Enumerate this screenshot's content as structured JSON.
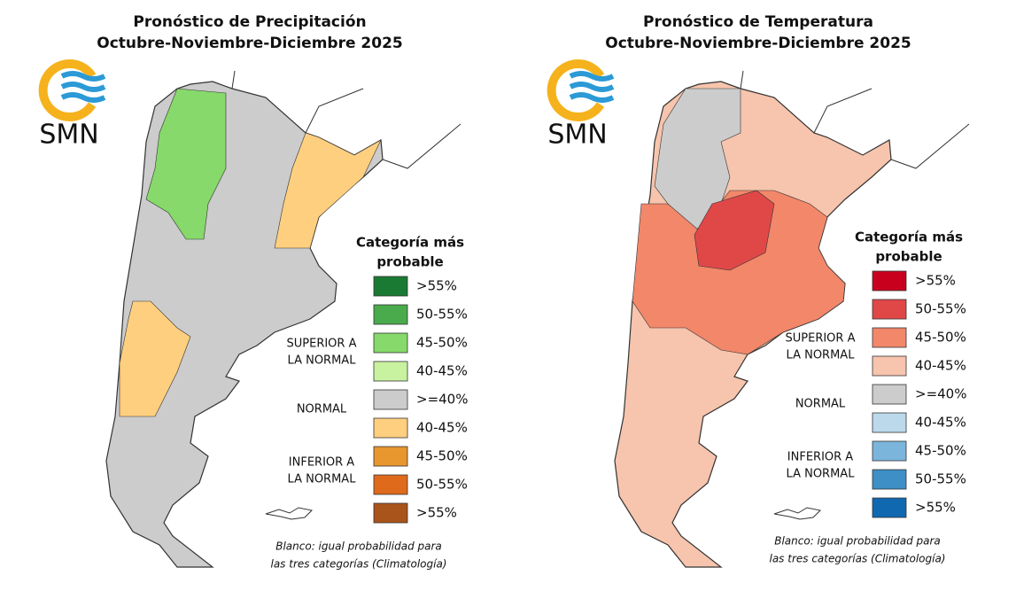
{
  "panels": [
    {
      "title": [
        "Pronóstico de Precipitación",
        "Octubre-Noviembre-Diciembre 2025"
      ],
      "logo": "SMN",
      "legend": {
        "title": [
          "Categoría más",
          "probable"
        ],
        "groups": [
          [
            "SUPERIOR A",
            "LA NORMAL"
          ],
          [
            "NORMAL"
          ],
          [
            "INFERIOR A",
            "LA NORMAL"
          ]
        ],
        "items": [
          {
            "label": ">55%",
            "color": "#1a7a33"
          },
          {
            "label": "50-55%",
            "color": "#4aab4c"
          },
          {
            "label": "45-50%",
            "color": "#86d96a"
          },
          {
            "label": "40-45%",
            "color": "#c9f2a0"
          },
          {
            "label": ">=40%",
            "color": "#cccccc"
          },
          {
            "label": "40-45%",
            "color": "#ffcf80"
          },
          {
            "label": "45-50%",
            "color": "#e8962e"
          },
          {
            "label": "50-55%",
            "color": "#e06a1b"
          },
          {
            "label": ">55%",
            "color": "#a9541a"
          }
        ]
      },
      "note": [
        "Blanco: igual probabilidad para",
        "las tres categorías (Climatología)"
      ]
    },
    {
      "title": [
        "Pronóstico de Temperatura",
        "Octubre-Noviembre-Diciembre 2025"
      ],
      "logo": "SMN",
      "legend": {
        "title": [
          "Categoría más",
          "probable"
        ],
        "groups": [
          [
            "SUPERIOR A",
            "LA NORMAL"
          ],
          [
            "NORMAL"
          ],
          [
            "INFERIOR A",
            "LA NORMAL"
          ]
        ],
        "items": [
          {
            "label": ">55%",
            "color": "#c8001e"
          },
          {
            "label": "50-55%",
            "color": "#e04848"
          },
          {
            "label": "45-50%",
            "color": "#f2876a"
          },
          {
            "label": "40-45%",
            "color": "#f7c4ad"
          },
          {
            "label": ">=40%",
            "color": "#cccccc"
          },
          {
            "label": "40-45%",
            "color": "#bcd9ec"
          },
          {
            "label": "45-50%",
            "color": "#7bb5dc"
          },
          {
            "label": "50-55%",
            "color": "#3d8fc6"
          },
          {
            "label": ">55%",
            "color": "#1068b0"
          }
        ]
      },
      "note": [
        "Blanco: igual probabilidad para",
        "las tres categorías (Climatología)"
      ]
    }
  ]
}
